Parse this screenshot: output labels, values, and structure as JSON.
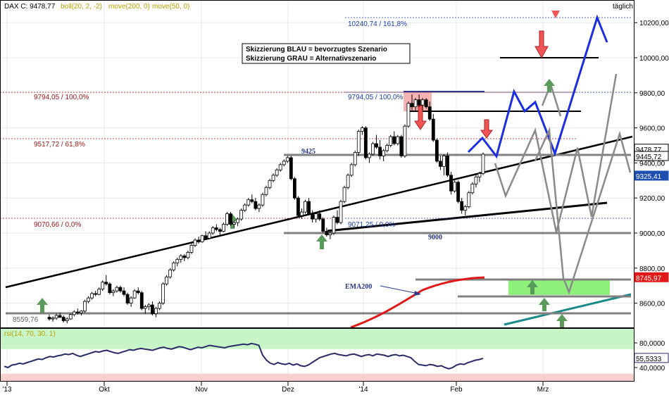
{
  "chart_data": [
    {
      "type": "candlestick",
      "title": "DAX C: 9478,77",
      "indicators": [
        "boll(20, 2, -2)",
        "move(200, 0)",
        "move(50, 0)"
      ],
      "interval": "täglich",
      "ylim": [
        8480,
        10300
      ],
      "y_ticks": [
        "8600,00",
        "8800,00",
        "9000,00",
        "9200,00",
        "9400,00",
        "9600,00",
        "9800,00",
        "10000,00",
        "10200,00"
      ],
      "y_tick_values": [
        8600,
        8800,
        9000,
        9200,
        9400,
        9600,
        9800,
        10000,
        10200
      ],
      "x_ticks": [
        "'13",
        "Okt",
        "Nov",
        "Dez",
        "'14",
        "Feb",
        "Mrz"
      ],
      "price_labels": [
        {
          "text": "9478,77",
          "value": 9478.77,
          "color": "#000000"
        },
        {
          "text": "9445,72",
          "value": 9445.72,
          "color": "#000000"
        },
        {
          "text": "9325,41",
          "value": 9325.41,
          "color": "#1c4fb0"
        },
        {
          "text": "8745,97",
          "value": 8745.97,
          "color": "#e01818"
        }
      ],
      "fibonacci_left": [
        {
          "text": "9794,05 / 100,0%",
          "value": 9794.05
        },
        {
          "text": "9517,72 / 61,8%",
          "value": 9517.72
        },
        {
          "text": "9070,66 / 0,0%",
          "value": 9070.66
        }
      ],
      "fibonacci_right": [
        {
          "text": "10240,74 / 161,8%",
          "value": 10240.74
        },
        {
          "text": "9794,05 / 100,0%",
          "value": 9794.05
        },
        {
          "text": "9071,25 / 0,0%",
          "value": 9071.25
        }
      ],
      "level_labels": [
        {
          "text": "9425",
          "value": 9425
        },
        {
          "text": "9000",
          "value": 9000
        },
        {
          "text": "8559,76",
          "value": 8559.76
        }
      ],
      "legend_box": [
        "Skizzierung BLAU = bevorzugtes Szenario",
        "Skizzierung GRAU = Alternativszenario"
      ],
      "ema_label": "EMA200",
      "candles_ohlc": [
        [
          8520,
          8535,
          8500,
          8510
        ],
        [
          8510,
          8525,
          8495,
          8515
        ],
        [
          8515,
          8540,
          8505,
          8530
        ],
        [
          8530,
          8545,
          8515,
          8520
        ],
        [
          8520,
          8530,
          8490,
          8500
        ],
        [
          8500,
          8520,
          8485,
          8510
        ],
        [
          8510,
          8540,
          8505,
          8535
        ],
        [
          8535,
          8560,
          8525,
          8550
        ],
        [
          8550,
          8570,
          8535,
          8545
        ],
        [
          8545,
          8560,
          8530,
          8555
        ],
        [
          8555,
          8620,
          8545,
          8610
        ],
        [
          8610,
          8640,
          8600,
          8630
        ],
        [
          8630,
          8665,
          8620,
          8655
        ],
        [
          8655,
          8670,
          8640,
          8650
        ],
        [
          8650,
          8690,
          8645,
          8680
        ],
        [
          8680,
          8730,
          8670,
          8720
        ],
        [
          8720,
          8760,
          8700,
          8710
        ],
        [
          8710,
          8720,
          8650,
          8660
        ],
        [
          8660,
          8680,
          8640,
          8670
        ],
        [
          8670,
          8700,
          8660,
          8690
        ],
        [
          8690,
          8700,
          8660,
          8670
        ],
        [
          8670,
          8690,
          8640,
          8650
        ],
        [
          8650,
          8660,
          8590,
          8600
        ],
        [
          8600,
          8640,
          8580,
          8630
        ],
        [
          8630,
          8680,
          8625,
          8670
        ],
        [
          8670,
          8690,
          8650,
          8660
        ],
        [
          8660,
          8670,
          8560,
          8570
        ],
        [
          8570,
          8590,
          8540,
          8580
        ],
        [
          8580,
          8600,
          8560,
          8590
        ],
        [
          8590,
          8610,
          8530,
          8540
        ],
        [
          8540,
          8580,
          8520,
          8570
        ],
        [
          8570,
          8610,
          8560,
          8600
        ],
        [
          8600,
          8720,
          8590,
          8710
        ],
        [
          8710,
          8760,
          8700,
          8750
        ],
        [
          8750,
          8800,
          8740,
          8790
        ],
        [
          8790,
          8840,
          8780,
          8830
        ],
        [
          8830,
          8860,
          8810,
          8850
        ],
        [
          8850,
          8880,
          8830,
          8870
        ],
        [
          8870,
          8880,
          8840,
          8860
        ],
        [
          8860,
          8900,
          8850,
          8890
        ],
        [
          8890,
          8940,
          8880,
          8930
        ],
        [
          8930,
          8970,
          8920,
          8960
        ],
        [
          8960,
          8980,
          8940,
          8950
        ],
        [
          8950,
          8990,
          8945,
          8985
        ],
        [
          8985,
          9010,
          8960,
          8970
        ],
        [
          8970,
          9010,
          8965,
          9000
        ],
        [
          9000,
          9040,
          8990,
          9030
        ],
        [
          9030,
          9050,
          9010,
          9020
        ],
        [
          9020,
          9030,
          8990,
          9010
        ],
        [
          9010,
          9060,
          9005,
          9050
        ],
        [
          9050,
          9120,
          9040,
          9110
        ],
        [
          9110,
          9120,
          9040,
          9050
        ],
        [
          9050,
          9070,
          9030,
          9060
        ],
        [
          9060,
          9090,
          9040,
          9080
        ],
        [
          9080,
          9140,
          9070,
          9130
        ],
        [
          9130,
          9170,
          9120,
          9160
        ],
        [
          9160,
          9200,
          9150,
          9190
        ],
        [
          9190,
          9220,
          9170,
          9180
        ],
        [
          9180,
          9200,
          9130,
          9140
        ],
        [
          9140,
          9170,
          9120,
          9160
        ],
        [
          9160,
          9230,
          9150,
          9220
        ],
        [
          9220,
          9270,
          9210,
          9260
        ],
        [
          9260,
          9310,
          9250,
          9300
        ],
        [
          9300,
          9340,
          9290,
          9330
        ],
        [
          9330,
          9370,
          9320,
          9360
        ],
        [
          9360,
          9400,
          9350,
          9390
        ],
        [
          9390,
          9420,
          9380,
          9410
        ],
        [
          9410,
          9440,
          9400,
          9430
        ],
        [
          9430,
          9440,
          9300,
          9310
        ],
        [
          9310,
          9320,
          9190,
          9200
        ],
        [
          9200,
          9210,
          9090,
          9100
        ],
        [
          9100,
          9140,
          9080,
          9120
        ],
        [
          9120,
          9190,
          9110,
          9180
        ],
        [
          9180,
          9200,
          9100,
          9110
        ],
        [
          9110,
          9130,
          9060,
          9080
        ],
        [
          9080,
          9120,
          9060,
          9110
        ],
        [
          9110,
          9130,
          9070,
          9080
        ],
        [
          9080,
          9090,
          9000,
          9010
        ],
        [
          9010,
          9030,
          8980,
          8990
        ],
        [
          8990,
          9010,
          8965,
          9000
        ],
        [
          9000,
          9100,
          8990,
          9090
        ],
        [
          9090,
          9130,
          9050,
          9060
        ],
        [
          9060,
          9190,
          9050,
          9180
        ],
        [
          9180,
          9270,
          9170,
          9260
        ],
        [
          9260,
          9340,
          9250,
          9330
        ],
        [
          9330,
          9400,
          9320,
          9390
        ],
        [
          9390,
          9470,
          9380,
          9460
        ],
        [
          9460,
          9590,
          9440,
          9580
        ],
        [
          9580,
          9610,
          9560,
          9600
        ],
        [
          9600,
          9610,
          9420,
          9430
        ],
        [
          9430,
          9460,
          9400,
          9450
        ],
        [
          9450,
          9520,
          9440,
          9510
        ],
        [
          9510,
          9560,
          9480,
          9490
        ],
        [
          9490,
          9530,
          9420,
          9440
        ],
        [
          9440,
          9480,
          9410,
          9470
        ],
        [
          9470,
          9510,
          9460,
          9500
        ],
        [
          9500,
          9560,
          9490,
          9550
        ],
        [
          9550,
          9580,
          9500,
          9510
        ],
        [
          9510,
          9560,
          9500,
          9550
        ],
        [
          9550,
          9560,
          9430,
          9440
        ],
        [
          9440,
          9620,
          9430,
          9610
        ],
        [
          9610,
          9750,
          9600,
          9740
        ],
        [
          9740,
          9790,
          9700,
          9720
        ],
        [
          9720,
          9770,
          9690,
          9760
        ],
        [
          9760,
          9790,
          9720,
          9730
        ],
        [
          9730,
          9770,
          9700,
          9760
        ],
        [
          9760,
          9770,
          9710,
          9720
        ],
        [
          9720,
          9750,
          9640,
          9650
        ],
        [
          9650,
          9680,
          9520,
          9530
        ],
        [
          9530,
          9540,
          9400,
          9410
        ],
        [
          9410,
          9440,
          9360,
          9380
        ],
        [
          9380,
          9450,
          9330,
          9440
        ],
        [
          9440,
          9460,
          9320,
          9330
        ],
        [
          9330,
          9350,
          9220,
          9240
        ],
        [
          9240,
          9300,
          9230,
          9290
        ],
        [
          9290,
          9300,
          9170,
          9180
        ],
        [
          9180,
          9200,
          9110,
          9130
        ],
        [
          9130,
          9160,
          9100,
          9150
        ],
        [
          9150,
          9240,
          9140,
          9230
        ],
        [
          9230,
          9290,
          9220,
          9280
        ],
        [
          9280,
          9330,
          9260,
          9320
        ],
        [
          9320,
          9350,
          9290,
          9340
        ],
        [
          9340,
          9460,
          9330,
          9450
        ]
      ],
      "rsi": {
        "label": "rsi(14, 70, 30, 1)",
        "value_label": "55,5333",
        "ylim": [
          25,
          90
        ],
        "y_ticks": [
          "40,0000",
          "80,0000"
        ],
        "y_tick_values": [
          40,
          80
        ],
        "bands": [
          30,
          70
        ],
        "values": [
          42,
          40,
          44,
          45,
          47,
          46,
          48,
          50,
          52,
          54,
          53,
          56,
          58,
          57,
          59,
          60,
          62,
          61,
          63,
          60,
          58,
          60,
          62,
          64,
          66,
          65,
          67,
          68,
          66,
          64,
          63,
          65,
          67,
          69,
          68,
          70,
          71,
          70,
          69,
          68,
          70,
          72,
          73,
          71,
          70,
          72,
          74,
          73,
          71,
          69,
          71,
          73,
          72,
          74,
          76,
          75,
          74,
          73,
          72,
          74,
          75,
          76,
          77,
          78,
          77,
          79,
          78,
          76,
          60,
          52,
          47,
          45,
          48,
          46,
          45,
          47,
          44,
          46,
          43,
          42,
          44,
          48,
          52,
          56,
          58,
          60,
          62,
          63,
          61,
          60,
          59,
          61,
          62,
          60,
          58,
          60,
          61,
          59,
          62,
          61,
          60,
          58,
          60,
          61,
          59,
          60,
          58,
          56,
          50,
          45,
          44,
          43,
          45,
          44,
          42,
          43,
          40,
          38,
          40,
          44,
          46,
          45,
          48,
          50,
          52,
          53,
          55
        ]
      }
    }
  ]
}
